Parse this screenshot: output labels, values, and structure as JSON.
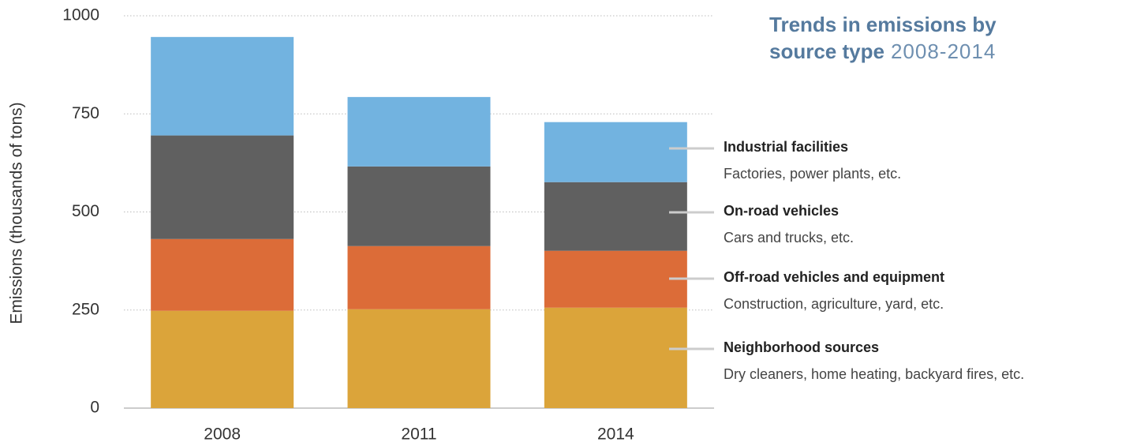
{
  "chart_data": {
    "type": "stacked_bar",
    "title": "Trends in emissions by source type",
    "subtitle": "2008-2014",
    "y_label": "Emissions (thousands of tons)",
    "categories": [
      "2008",
      "2011",
      "2014"
    ],
    "series": [
      {
        "name": "Neighborhood sources",
        "description": "Dry cleaners, home heating, backyard fires, etc.",
        "color": "#dba43a",
        "values": [
          248,
          252,
          256
        ]
      },
      {
        "name": "Off-road vehicles and equipment",
        "description": "Construction, agriculture, yard, etc.",
        "color": "#dc6c38",
        "values": [
          183,
          161,
          145
        ]
      },
      {
        "name": "On-road vehicles",
        "description": "Cars and trucks, etc.",
        "color": "#606060",
        "values": [
          264,
          203,
          175
        ]
      },
      {
        "name": "Industrial facilities",
        "description": "Factories, power plants, etc.",
        "color": "#72b3e0",
        "values": [
          251,
          177,
          153
        ]
      }
    ],
    "ylim": [
      0,
      1000
    ],
    "yticks": [
      0,
      250,
      500,
      750,
      1000
    ],
    "grid": true
  }
}
